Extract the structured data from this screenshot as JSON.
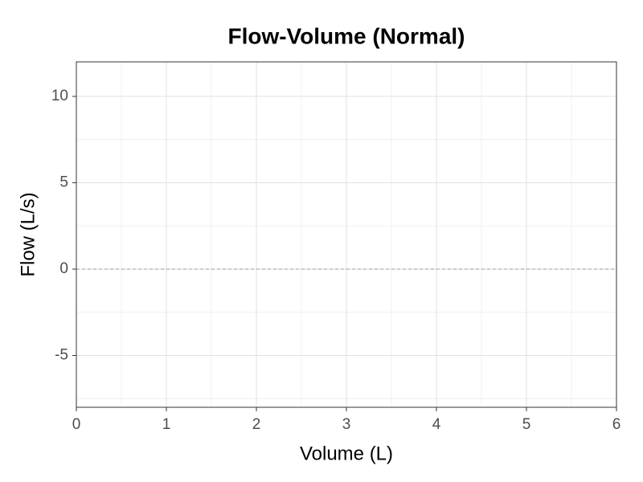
{
  "chart_data": {
    "type": "line",
    "title": "Flow-Volume (Normal)",
    "x_label": "Volume (L)",
    "y_label": "Flow (L/s)",
    "series": [],
    "xlim": [
      0,
      6
    ],
    "xticks": [
      0,
      1,
      2,
      3,
      4,
      5,
      6
    ],
    "ylim": [
      -8,
      12
    ],
    "yticks": [
      -5,
      0,
      5,
      10
    ],
    "hlines": [
      0
    ],
    "grid": true,
    "minor_grid": true
  }
}
